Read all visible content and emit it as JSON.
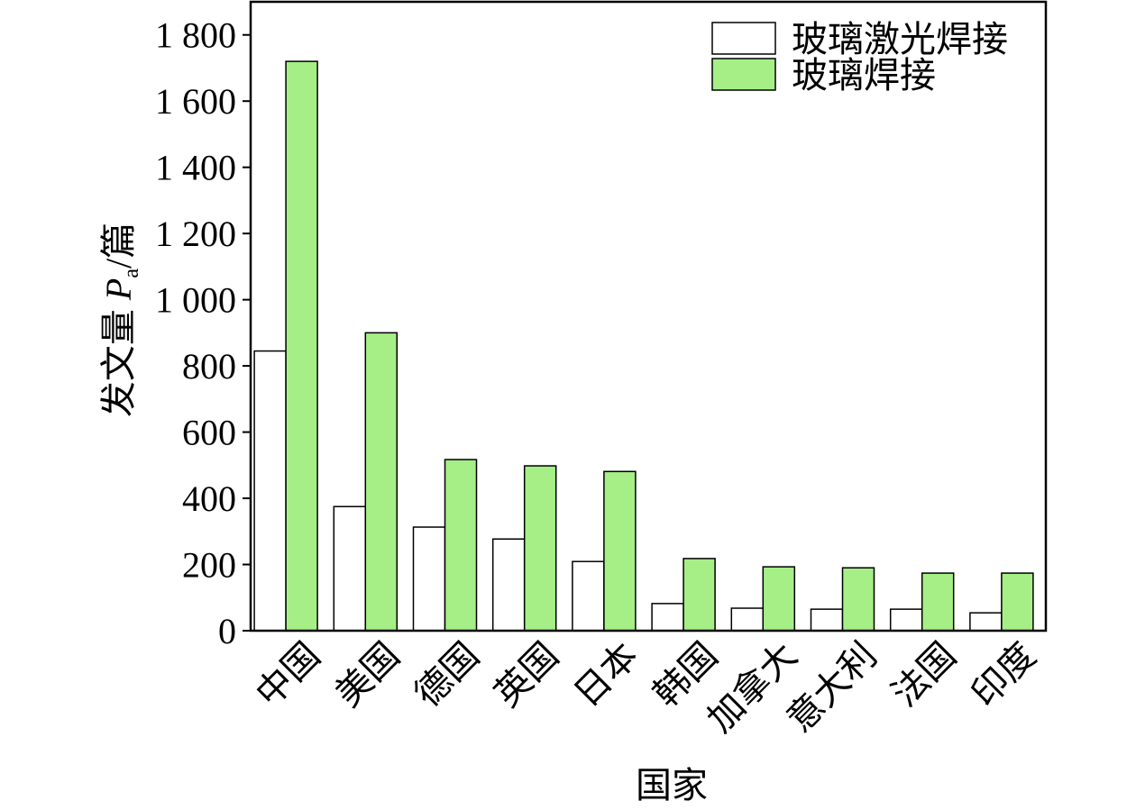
{
  "chart_data": {
    "type": "bar",
    "x_label": "国家",
    "y_label": [
      "发文量 ",
      "P",
      "a",
      "/篇"
    ],
    "categories": [
      "中国",
      "美国",
      "德国",
      "英国",
      "日本",
      "韩国",
      "加拿大",
      "意大利",
      "法国",
      "印度"
    ],
    "series": [
      {
        "name": "玻璃激光焊接",
        "color": "#ffffff",
        "values": [
          845,
          375,
          313,
          277,
          209,
          82,
          68,
          65,
          65,
          54
        ]
      },
      {
        "name": "玻璃焊接",
        "color": "#a5ef86",
        "values": [
          1720,
          900,
          517,
          498,
          481,
          218,
          193,
          190,
          174,
          174
        ]
      }
    ],
    "ylim": [
      0,
      1900
    ],
    "yticks": [
      0,
      200,
      400,
      600,
      800,
      {
        "value": 1000,
        "label": "1 000"
      },
      {
        "value": 1200,
        "label": "1 200"
      },
      {
        "value": 1400,
        "label": "1 400"
      },
      {
        "value": 1600,
        "label": "1 600"
      },
      {
        "value": 1800,
        "label": "1 800"
      }
    ],
    "legend": "top-right"
  }
}
